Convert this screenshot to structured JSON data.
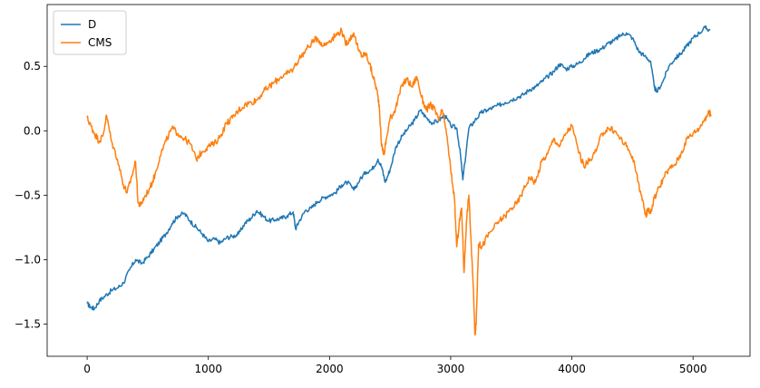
{
  "chart_data": {
    "type": "line",
    "title": "",
    "xlabel": "",
    "ylabel": "",
    "xlim": [
      -330,
      5470
    ],
    "ylim": [
      -1.75,
      0.98
    ],
    "xticks": [
      0,
      1000,
      2000,
      3000,
      4000,
      5000
    ],
    "xtick_labels": [
      "0",
      "1000",
      "2000",
      "3000",
      "4000",
      "5000"
    ],
    "yticks": [
      -1.5,
      -1.0,
      -0.5,
      0.0,
      0.5
    ],
    "ytick_labels": [
      "−1.5",
      "−1.0",
      "−0.5",
      "0.0",
      "0.5"
    ],
    "grid": false,
    "legend_position": "top-left",
    "series": [
      {
        "name": "D",
        "color": "#1f77b4",
        "x": [
          0,
          30,
          60,
          100,
          150,
          200,
          250,
          300,
          350,
          400,
          450,
          500,
          550,
          600,
          650,
          700,
          750,
          800,
          850,
          900,
          950,
          1000,
          1050,
          1100,
          1150,
          1200,
          1250,
          1300,
          1350,
          1400,
          1450,
          1500,
          1550,
          1600,
          1650,
          1700,
          1720,
          1750,
          1800,
          1850,
          1900,
          1950,
          2000,
          2050,
          2100,
          2150,
          2200,
          2250,
          2300,
          2350,
          2400,
          2430,
          2460,
          2500,
          2550,
          2600,
          2650,
          2700,
          2750,
          2800,
          2850,
          2900,
          2950,
          3000,
          3050,
          3080,
          3100,
          3150,
          3200,
          3250,
          3300,
          3350,
          3400,
          3450,
          3500,
          3550,
          3600,
          3650,
          3700,
          3750,
          3800,
          3850,
          3900,
          3950,
          4000,
          4050,
          4100,
          4150,
          4200,
          4250,
          4300,
          4350,
          4400,
          4450,
          4500,
          4550,
          4600,
          4650,
          4680,
          4700,
          4750,
          4800,
          4850,
          4900,
          4950,
          5000,
          5050,
          5100,
          5140
        ],
        "y": [
          -1.34,
          -1.37,
          -1.38,
          -1.32,
          -1.28,
          -1.24,
          -1.22,
          -1.18,
          -1.08,
          -1.0,
          -1.03,
          -0.98,
          -0.92,
          -0.86,
          -0.8,
          -0.72,
          -0.66,
          -0.64,
          -0.7,
          -0.75,
          -0.8,
          -0.86,
          -0.84,
          -0.87,
          -0.83,
          -0.82,
          -0.8,
          -0.72,
          -0.68,
          -0.62,
          -0.66,
          -0.7,
          -0.69,
          -0.68,
          -0.66,
          -0.63,
          -0.76,
          -0.7,
          -0.62,
          -0.6,
          -0.55,
          -0.52,
          -0.5,
          -0.48,
          -0.42,
          -0.4,
          -0.46,
          -0.38,
          -0.32,
          -0.3,
          -0.22,
          -0.28,
          -0.4,
          -0.3,
          -0.12,
          -0.04,
          0.02,
          0.08,
          0.16,
          0.1,
          0.06,
          0.08,
          0.12,
          0.04,
          0.02,
          -0.18,
          -0.38,
          0.02,
          0.08,
          0.14,
          0.16,
          0.18,
          0.2,
          0.22,
          0.24,
          0.26,
          0.28,
          0.32,
          0.34,
          0.38,
          0.42,
          0.46,
          0.52,
          0.48,
          0.5,
          0.52,
          0.56,
          0.6,
          0.62,
          0.64,
          0.68,
          0.7,
          0.74,
          0.76,
          0.72,
          0.62,
          0.58,
          0.54,
          0.34,
          0.3,
          0.38,
          0.5,
          0.56,
          0.6,
          0.66,
          0.72,
          0.76,
          0.8,
          0.78
        ]
      },
      {
        "name": "CMS",
        "color": "#ff7f0e",
        "x": [
          0,
          30,
          60,
          100,
          130,
          160,
          200,
          250,
          300,
          330,
          360,
          400,
          420,
          440,
          470,
          520,
          560,
          600,
          650,
          700,
          750,
          800,
          850,
          900,
          950,
          1000,
          1050,
          1100,
          1150,
          1200,
          1250,
          1300,
          1350,
          1400,
          1450,
          1500,
          1550,
          1600,
          1650,
          1700,
          1750,
          1800,
          1850,
          1900,
          1950,
          2000,
          2050,
          2100,
          2130,
          2160,
          2200,
          2240,
          2270,
          2300,
          2330,
          2360,
          2390,
          2410,
          2430,
          2450,
          2470,
          2500,
          2530,
          2560,
          2600,
          2640,
          2680,
          2720,
          2760,
          2800,
          2830,
          2860,
          2900,
          2930,
          2960,
          3000,
          3030,
          3050,
          3070,
          3090,
          3110,
          3130,
          3150,
          3170,
          3190,
          3200,
          3210,
          3230,
          3260,
          3300,
          3350,
          3400,
          3450,
          3500,
          3550,
          3600,
          3650,
          3700,
          3750,
          3800,
          3850,
          3900,
          3950,
          4000,
          4050,
          4100,
          4150,
          4200,
          4250,
          4300,
          4350,
          4400,
          4450,
          4500,
          4550,
          4580,
          4610,
          4630,
          4650,
          4680,
          4720,
          4760,
          4800,
          4850,
          4900,
          4950,
          5000,
          5050,
          5100,
          5130,
          5150
        ],
        "y": [
          0.1,
          0.04,
          -0.02,
          -0.08,
          -0.04,
          0.12,
          -0.08,
          -0.22,
          -0.42,
          -0.48,
          -0.38,
          -0.24,
          -0.56,
          -0.58,
          -0.52,
          -0.44,
          -0.34,
          -0.2,
          -0.08,
          0.02,
          -0.02,
          -0.06,
          -0.1,
          -0.22,
          -0.16,
          -0.12,
          -0.1,
          -0.04,
          0.06,
          0.1,
          0.16,
          0.2,
          0.22,
          0.24,
          0.3,
          0.34,
          0.38,
          0.42,
          0.44,
          0.48,
          0.56,
          0.62,
          0.68,
          0.72,
          0.66,
          0.7,
          0.74,
          0.78,
          0.68,
          0.7,
          0.76,
          0.62,
          0.58,
          0.6,
          0.52,
          0.42,
          0.32,
          0.2,
          -0.12,
          -0.18,
          -0.06,
          0.1,
          0.14,
          0.22,
          0.36,
          0.4,
          0.34,
          0.42,
          0.26,
          0.16,
          0.2,
          0.18,
          0.08,
          0.16,
          0.02,
          -0.3,
          -0.52,
          -0.9,
          -0.72,
          -0.6,
          -1.1,
          -0.7,
          -0.5,
          -0.9,
          -1.3,
          -1.58,
          -1.5,
          -0.88,
          -0.9,
          -0.82,
          -0.76,
          -0.7,
          -0.66,
          -0.6,
          -0.56,
          -0.46,
          -0.36,
          -0.4,
          -0.24,
          -0.18,
          -0.06,
          -0.12,
          -0.02,
          0.04,
          -0.14,
          -0.28,
          -0.22,
          -0.16,
          -0.02,
          0.02,
          0.0,
          -0.06,
          -0.12,
          -0.2,
          -0.4,
          -0.54,
          -0.66,
          -0.6,
          -0.64,
          -0.52,
          -0.44,
          -0.36,
          -0.3,
          -0.26,
          -0.18,
          -0.06,
          -0.02,
          0.02,
          0.1,
          0.14,
          0.12
        ]
      }
    ]
  }
}
